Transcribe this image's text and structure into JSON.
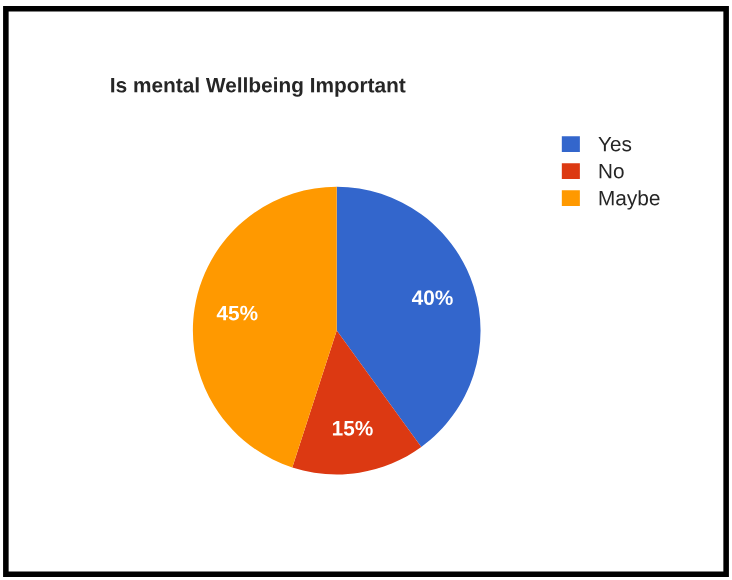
{
  "chart_data": {
    "type": "pie",
    "title": "Is mental Wellbeing Important",
    "categories": [
      "Yes",
      "No",
      "Maybe"
    ],
    "values": [
      40,
      15,
      45
    ],
    "value_labels": [
      "40%",
      "15%",
      "45%"
    ],
    "colors": [
      "#3366cc",
      "#dc3912",
      "#ff9900"
    ],
    "legend": "top right"
  }
}
